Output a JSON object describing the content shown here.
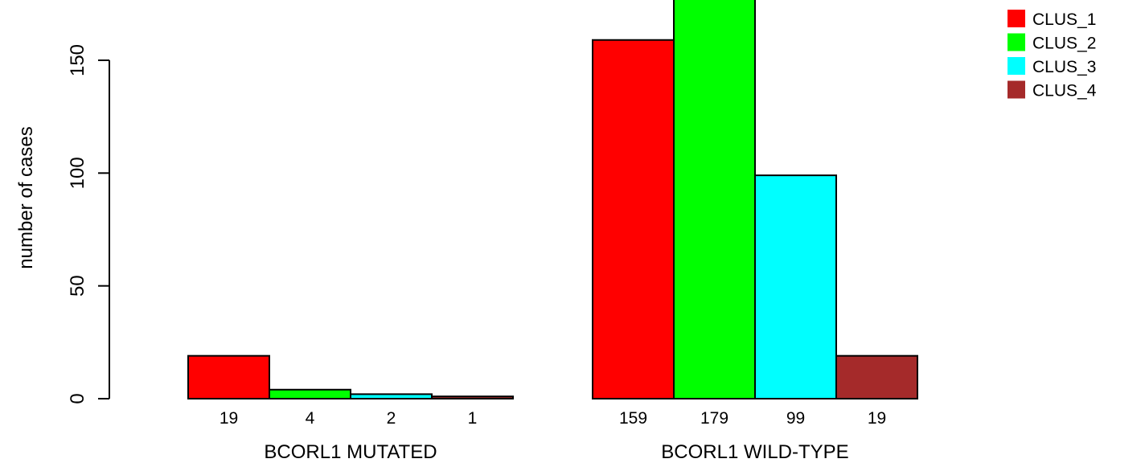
{
  "chart_data": {
    "type": "bar",
    "ylabel": "number of cases",
    "ylim": [
      0,
      175
    ],
    "yticks": [
      0,
      50,
      100,
      150
    ],
    "grid": false,
    "legend_position": "top-right",
    "series": [
      {
        "name": "CLUS_1",
        "color": "#ff0000"
      },
      {
        "name": "CLUS_2",
        "color": "#00ff00"
      },
      {
        "name": "CLUS_3",
        "color": "#00ffff"
      },
      {
        "name": "CLUS_4",
        "color": "#a52a2a"
      }
    ],
    "groups": [
      {
        "label": "BCORL1 MUTATED",
        "values": [
          19,
          4,
          2,
          1
        ]
      },
      {
        "label": "BCORL1 WILD-TYPE",
        "values": [
          159,
          179,
          99,
          19
        ]
      }
    ]
  }
}
